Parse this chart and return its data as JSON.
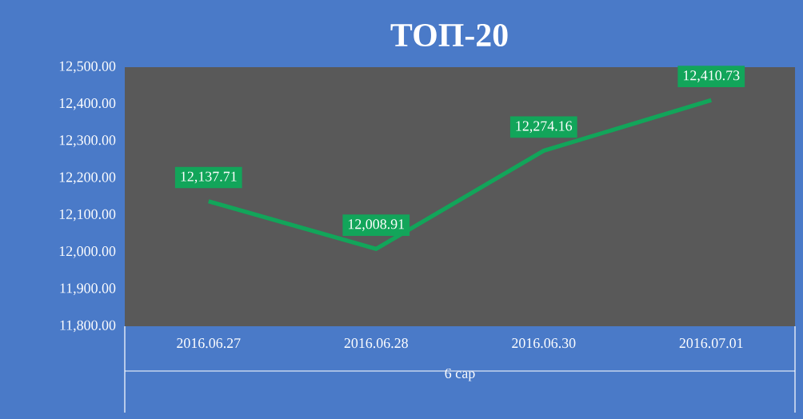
{
  "chart_data": {
    "type": "line",
    "title": "ТОП-20",
    "xlabel": "6 сар",
    "categories": [
      "2016.06.27",
      "2016.06.28",
      "2016.06.30",
      "2016.07.01"
    ],
    "series": [
      {
        "color": "#12a55a",
        "values": [
          12137.71,
          12008.91,
          12274.16,
          12410.73
        ],
        "value_labels": [
          "12,137.71",
          "12,008.91",
          "12,274.16",
          "12,410.73"
        ]
      }
    ],
    "ylim": [
      11800,
      12500
    ],
    "yticks": [
      {
        "value": 11800,
        "label": "11,800.00"
      },
      {
        "value": 11900,
        "label": "11,900.00"
      },
      {
        "value": 12000,
        "label": "12,000.00"
      },
      {
        "value": 12100,
        "label": "12,100.00"
      },
      {
        "value": 12200,
        "label": "12,200.00"
      },
      {
        "value": 12300,
        "label": "12,300.00"
      },
      {
        "value": 12400,
        "label": "12,400.00"
      },
      {
        "value": 12500,
        "label": "12,500.00"
      }
    ],
    "marker": "none",
    "line_style": "solid"
  }
}
